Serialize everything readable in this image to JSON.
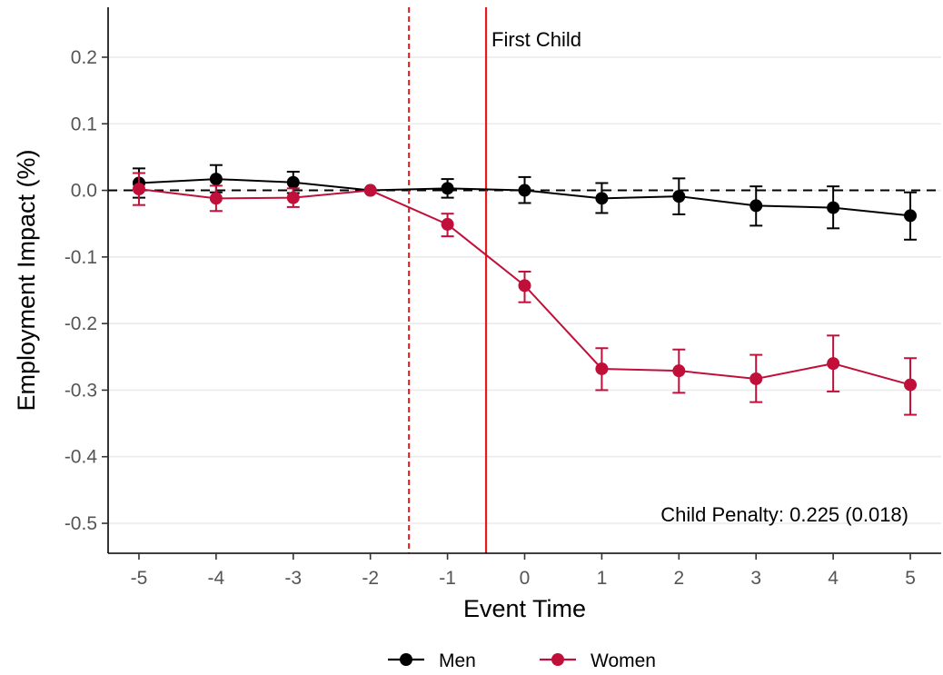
{
  "chart_data": {
    "type": "line",
    "xlabel": "Event Time",
    "ylabel": "Employment Impact (%)",
    "xlim": [
      -5.4,
      5.4
    ],
    "ylim": [
      -0.545,
      0.275
    ],
    "x_ticks": [
      -5,
      -4,
      -3,
      -2,
      -1,
      0,
      1,
      2,
      3,
      4,
      5
    ],
    "x_tick_labels": [
      "-5",
      "-4",
      "-3",
      "-2",
      "-1",
      "0",
      "1",
      "2",
      "3",
      "4",
      "5"
    ],
    "y_ticks": [
      -0.5,
      -0.4,
      -0.3,
      -0.2,
      -0.1,
      0.0,
      0.1,
      0.2
    ],
    "y_tick_labels": [
      "-0.5",
      "-0.4",
      "-0.3",
      "-0.2",
      "-0.1",
      "0.0",
      "0.1",
      "0.2"
    ],
    "grid": "horizontal",
    "reference_lines": {
      "zero_line": {
        "y": 0.0,
        "style": "dashed",
        "color": "#000000"
      },
      "anticipation_line": {
        "x": -1.5,
        "style": "dashed",
        "color": "#e41a1c"
      },
      "first_child_line": {
        "x": -0.5,
        "style": "solid",
        "color": "#e41a1c",
        "label": "First Child"
      }
    },
    "annotation": "Child Penalty: 0.225 (0.018)",
    "legend_position": "bottom",
    "x": [
      -5,
      -4,
      -3,
      -2,
      -1,
      0,
      1,
      2,
      3,
      4,
      5
    ],
    "series": [
      {
        "name": "Men",
        "color": "#000000",
        "values": [
          0.011,
          0.017,
          0.012,
          0.0,
          0.003,
          0.0,
          -0.012,
          -0.009,
          -0.023,
          -0.026,
          -0.038
        ],
        "ci_low": [
          -0.011,
          -0.003,
          -0.004,
          0.0,
          -0.011,
          -0.019,
          -0.034,
          -0.036,
          -0.053,
          -0.057,
          -0.074
        ],
        "ci_high": [
          0.033,
          0.038,
          0.028,
          0.0,
          0.017,
          0.02,
          0.011,
          0.018,
          0.006,
          0.006,
          -0.003
        ]
      },
      {
        "name": "Women",
        "color": "#c0103a",
        "values": [
          0.002,
          -0.012,
          -0.011,
          0.0,
          -0.051,
          -0.143,
          -0.268,
          -0.271,
          -0.283,
          -0.26,
          -0.292
        ],
        "ci_low": [
          -0.022,
          -0.031,
          -0.025,
          0.0,
          -0.069,
          -0.168,
          -0.3,
          -0.304,
          -0.318,
          -0.302,
          -0.337
        ],
        "ci_high": [
          0.026,
          0.007,
          0.003,
          0.0,
          -0.035,
          -0.122,
          -0.237,
          -0.239,
          -0.247,
          -0.218,
          -0.252
        ]
      }
    ]
  }
}
